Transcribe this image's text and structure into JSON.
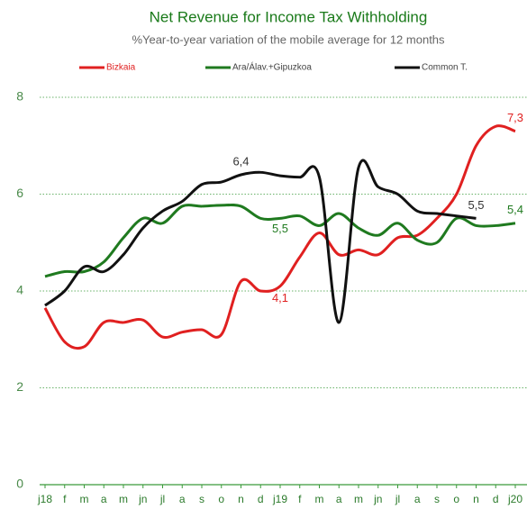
{
  "chart_data": {
    "type": "line",
    "title": "Net Revenue for Income Tax Withholding",
    "subtitle": "%Year-to-year variation of the mobile average for 12 months",
    "categories": [
      "j18",
      "f",
      "m",
      "a",
      "m",
      "jn",
      "jl",
      "a",
      "s",
      "o",
      "n",
      "d",
      "j19",
      "f",
      "m",
      "a",
      "m",
      "jn",
      "jl",
      "a",
      "s",
      "o",
      "n",
      "d",
      "j20"
    ],
    "ylim": [
      0,
      8
    ],
    "yticks": [
      0,
      2,
      4,
      6,
      8
    ],
    "grid": true,
    "series": [
      {
        "name": "Bizkaia",
        "color": "#e02020",
        "values": [
          3.65,
          2.95,
          2.85,
          3.35,
          3.35,
          3.4,
          3.05,
          3.15,
          3.2,
          3.1,
          4.2,
          4.0,
          4.1,
          4.7,
          5.2,
          4.75,
          4.85,
          4.75,
          5.1,
          5.15,
          5.5,
          6.0,
          7.0,
          7.4,
          7.3
        ],
        "value_labels": [
          null,
          null,
          null,
          null,
          null,
          null,
          null,
          null,
          null,
          null,
          null,
          null,
          "4,1",
          null,
          null,
          null,
          null,
          null,
          null,
          null,
          null,
          null,
          null,
          null,
          "7,3"
        ]
      },
      {
        "name": "Ara/Álav.+Gipuzkoa",
        "color": "#1f7a1f",
        "values": [
          4.3,
          4.4,
          4.4,
          4.6,
          5.1,
          5.5,
          5.4,
          5.75,
          5.75,
          5.77,
          5.75,
          5.5,
          5.5,
          5.55,
          5.35,
          5.6,
          5.3,
          5.15,
          5.4,
          5.05,
          5.0,
          5.5,
          5.35,
          5.35,
          5.4
        ],
        "value_labels": [
          null,
          null,
          null,
          null,
          null,
          null,
          null,
          null,
          null,
          null,
          null,
          null,
          "5,5",
          null,
          null,
          null,
          null,
          null,
          null,
          null,
          null,
          null,
          null,
          null,
          "5,4"
        ]
      },
      {
        "name": "Common T.",
        "color": "#111111",
        "values": [
          3.7,
          4.0,
          4.5,
          4.4,
          4.75,
          5.3,
          5.65,
          5.85,
          6.2,
          6.25,
          6.4,
          6.45,
          6.38,
          6.35,
          6.35,
          3.35,
          6.55,
          6.15,
          6.0,
          5.65,
          5.6,
          5.55,
          5.5,
          null,
          null
        ],
        "value_labels": [
          null,
          null,
          null,
          null,
          null,
          null,
          null,
          null,
          null,
          null,
          "6,4",
          null,
          null,
          null,
          null,
          null,
          null,
          null,
          null,
          null,
          null,
          null,
          "5,5",
          null,
          null
        ]
      }
    ]
  }
}
